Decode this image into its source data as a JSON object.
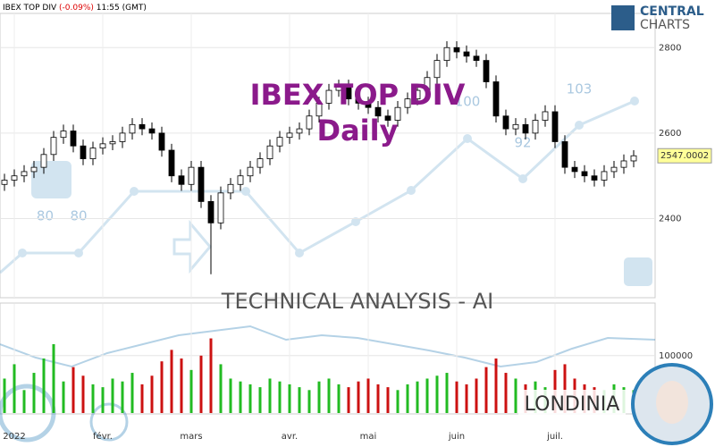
{
  "header": {
    "symbol": "IBEX TOP DIV",
    "change": "(-0.09%)",
    "time": "11:55 (GMT)"
  },
  "logo": {
    "line1": "CENTRAL",
    "line2": "CHARTS"
  },
  "watermark": {
    "title": "IBEX TOP DIV",
    "period": "Daily",
    "banner": "TECHNICAL  ANALYSIS - AI",
    "brand": "LONDINIA",
    "labels": [
      "80",
      "80",
      "100",
      "92",
      "103"
    ]
  },
  "chart_data": {
    "type": "candlestick",
    "categories": [
      null,
      "2022",
      null,
      null,
      null,
      null,
      null,
      null,
      null,
      null,
      "févr.",
      null,
      null,
      null,
      null,
      null,
      null,
      null,
      null,
      "mars",
      null,
      null,
      null,
      null,
      null,
      null,
      null,
      null,
      null,
      "avr.",
      null,
      null,
      null,
      null,
      null,
      null,
      null,
      "mai",
      null,
      null,
      null,
      null,
      null,
      null,
      null,
      null,
      "juin",
      null,
      null,
      null,
      null,
      null,
      null,
      null,
      null,
      null,
      "juil.",
      null,
      null,
      null,
      null,
      null,
      null,
      null,
      null
    ],
    "open": [
      2480,
      2490,
      2500,
      2510,
      2520,
      2550,
      2590,
      2605,
      2570,
      2540,
      2565,
      2575,
      2580,
      2600,
      2620,
      2610,
      2600,
      2560,
      2500,
      2480,
      2520,
      2440,
      2390,
      2460,
      2480,
      2500,
      2520,
      2540,
      2570,
      2590,
      2600,
      2610,
      2640,
      2670,
      2700,
      2710,
      2680,
      2670,
      2660,
      2640,
      2630,
      2660,
      2680,
      2700,
      2730,
      2770,
      2800,
      2790,
      2780,
      2770,
      2720,
      2640,
      2610,
      2620,
      2600,
      2630,
      2650,
      2580,
      2520,
      2510,
      2500,
      2490,
      2510,
      2520,
      2535
    ],
    "high": [
      2505,
      2515,
      2525,
      2535,
      2565,
      2605,
      2620,
      2620,
      2585,
      2580,
      2590,
      2595,
      2615,
      2635,
      2635,
      2625,
      2615,
      2575,
      2515,
      2535,
      2535,
      2455,
      2475,
      2495,
      2515,
      2535,
      2555,
      2585,
      2605,
      2615,
      2625,
      2655,
      2685,
      2715,
      2725,
      2725,
      2695,
      2685,
      2675,
      2655,
      2675,
      2695,
      2715,
      2745,
      2785,
      2815,
      2815,
      2805,
      2795,
      2785,
      2735,
      2655,
      2635,
      2635,
      2645,
      2665,
      2665,
      2595,
      2535,
      2525,
      2515,
      2525,
      2535,
      2550,
      2560
    ],
    "low": [
      2465,
      2475,
      2485,
      2495,
      2505,
      2535,
      2575,
      2555,
      2525,
      2525,
      2550,
      2560,
      2565,
      2585,
      2595,
      2585,
      2545,
      2485,
      2465,
      2465,
      2425,
      2270,
      2375,
      2445,
      2465,
      2485,
      2505,
      2525,
      2555,
      2575,
      2585,
      2595,
      2625,
      2655,
      2685,
      2665,
      2655,
      2645,
      2625,
      2615,
      2615,
      2645,
      2665,
      2685,
      2715,
      2755,
      2775,
      2765,
      2755,
      2705,
      2625,
      2595,
      2595,
      2585,
      2585,
      2615,
      2565,
      2505,
      2495,
      2485,
      2475,
      2475,
      2495,
      2505,
      2520
    ],
    "close": [
      2490,
      2500,
      2510,
      2520,
      2550,
      2590,
      2605,
      2570,
      2540,
      2565,
      2575,
      2580,
      2600,
      2620,
      2610,
      2600,
      2560,
      2500,
      2480,
      2520,
      2440,
      2390,
      2460,
      2480,
      2500,
      2520,
      2540,
      2570,
      2590,
      2600,
      2610,
      2640,
      2670,
      2700,
      2710,
      2680,
      2670,
      2660,
      2640,
      2630,
      2660,
      2680,
      2700,
      2730,
      2770,
      2800,
      2790,
      2780,
      2770,
      2720,
      2640,
      2610,
      2620,
      2600,
      2630,
      2650,
      2580,
      2520,
      2510,
      2500,
      2490,
      2510,
      2520,
      2535,
      2547.0002
    ],
    "ylim": [
      2215,
      2880
    ],
    "yticks": [
      2400,
      2600,
      2800
    ],
    "grid": true,
    "last_color": "#ffff99",
    "volume": {
      "values": [
        60000,
        85000,
        40000,
        70000,
        95000,
        120000,
        55000,
        80000,
        65000,
        50000,
        45000,
        60000,
        55000,
        70000,
        50000,
        65000,
        90000,
        110000,
        95000,
        75000,
        100000,
        130000,
        85000,
        60000,
        55000,
        50000,
        45000,
        60000,
        55000,
        50000,
        45000,
        40000,
        55000,
        60000,
        50000,
        45000,
        55000,
        60000,
        50000,
        45000,
        40000,
        50000,
        55000,
        60000,
        65000,
        70000,
        55000,
        50000,
        60000,
        80000,
        95000,
        70000,
        60000,
        50000,
        55000,
        45000,
        75000,
        85000,
        60000,
        50000,
        45000,
        40000,
        50000,
        45000,
        40000
      ],
      "up_color": "#22bb22",
      "down_color": "#cc1111",
      "ylim": [
        0,
        190000
      ],
      "yticks": [
        100000
      ]
    }
  }
}
